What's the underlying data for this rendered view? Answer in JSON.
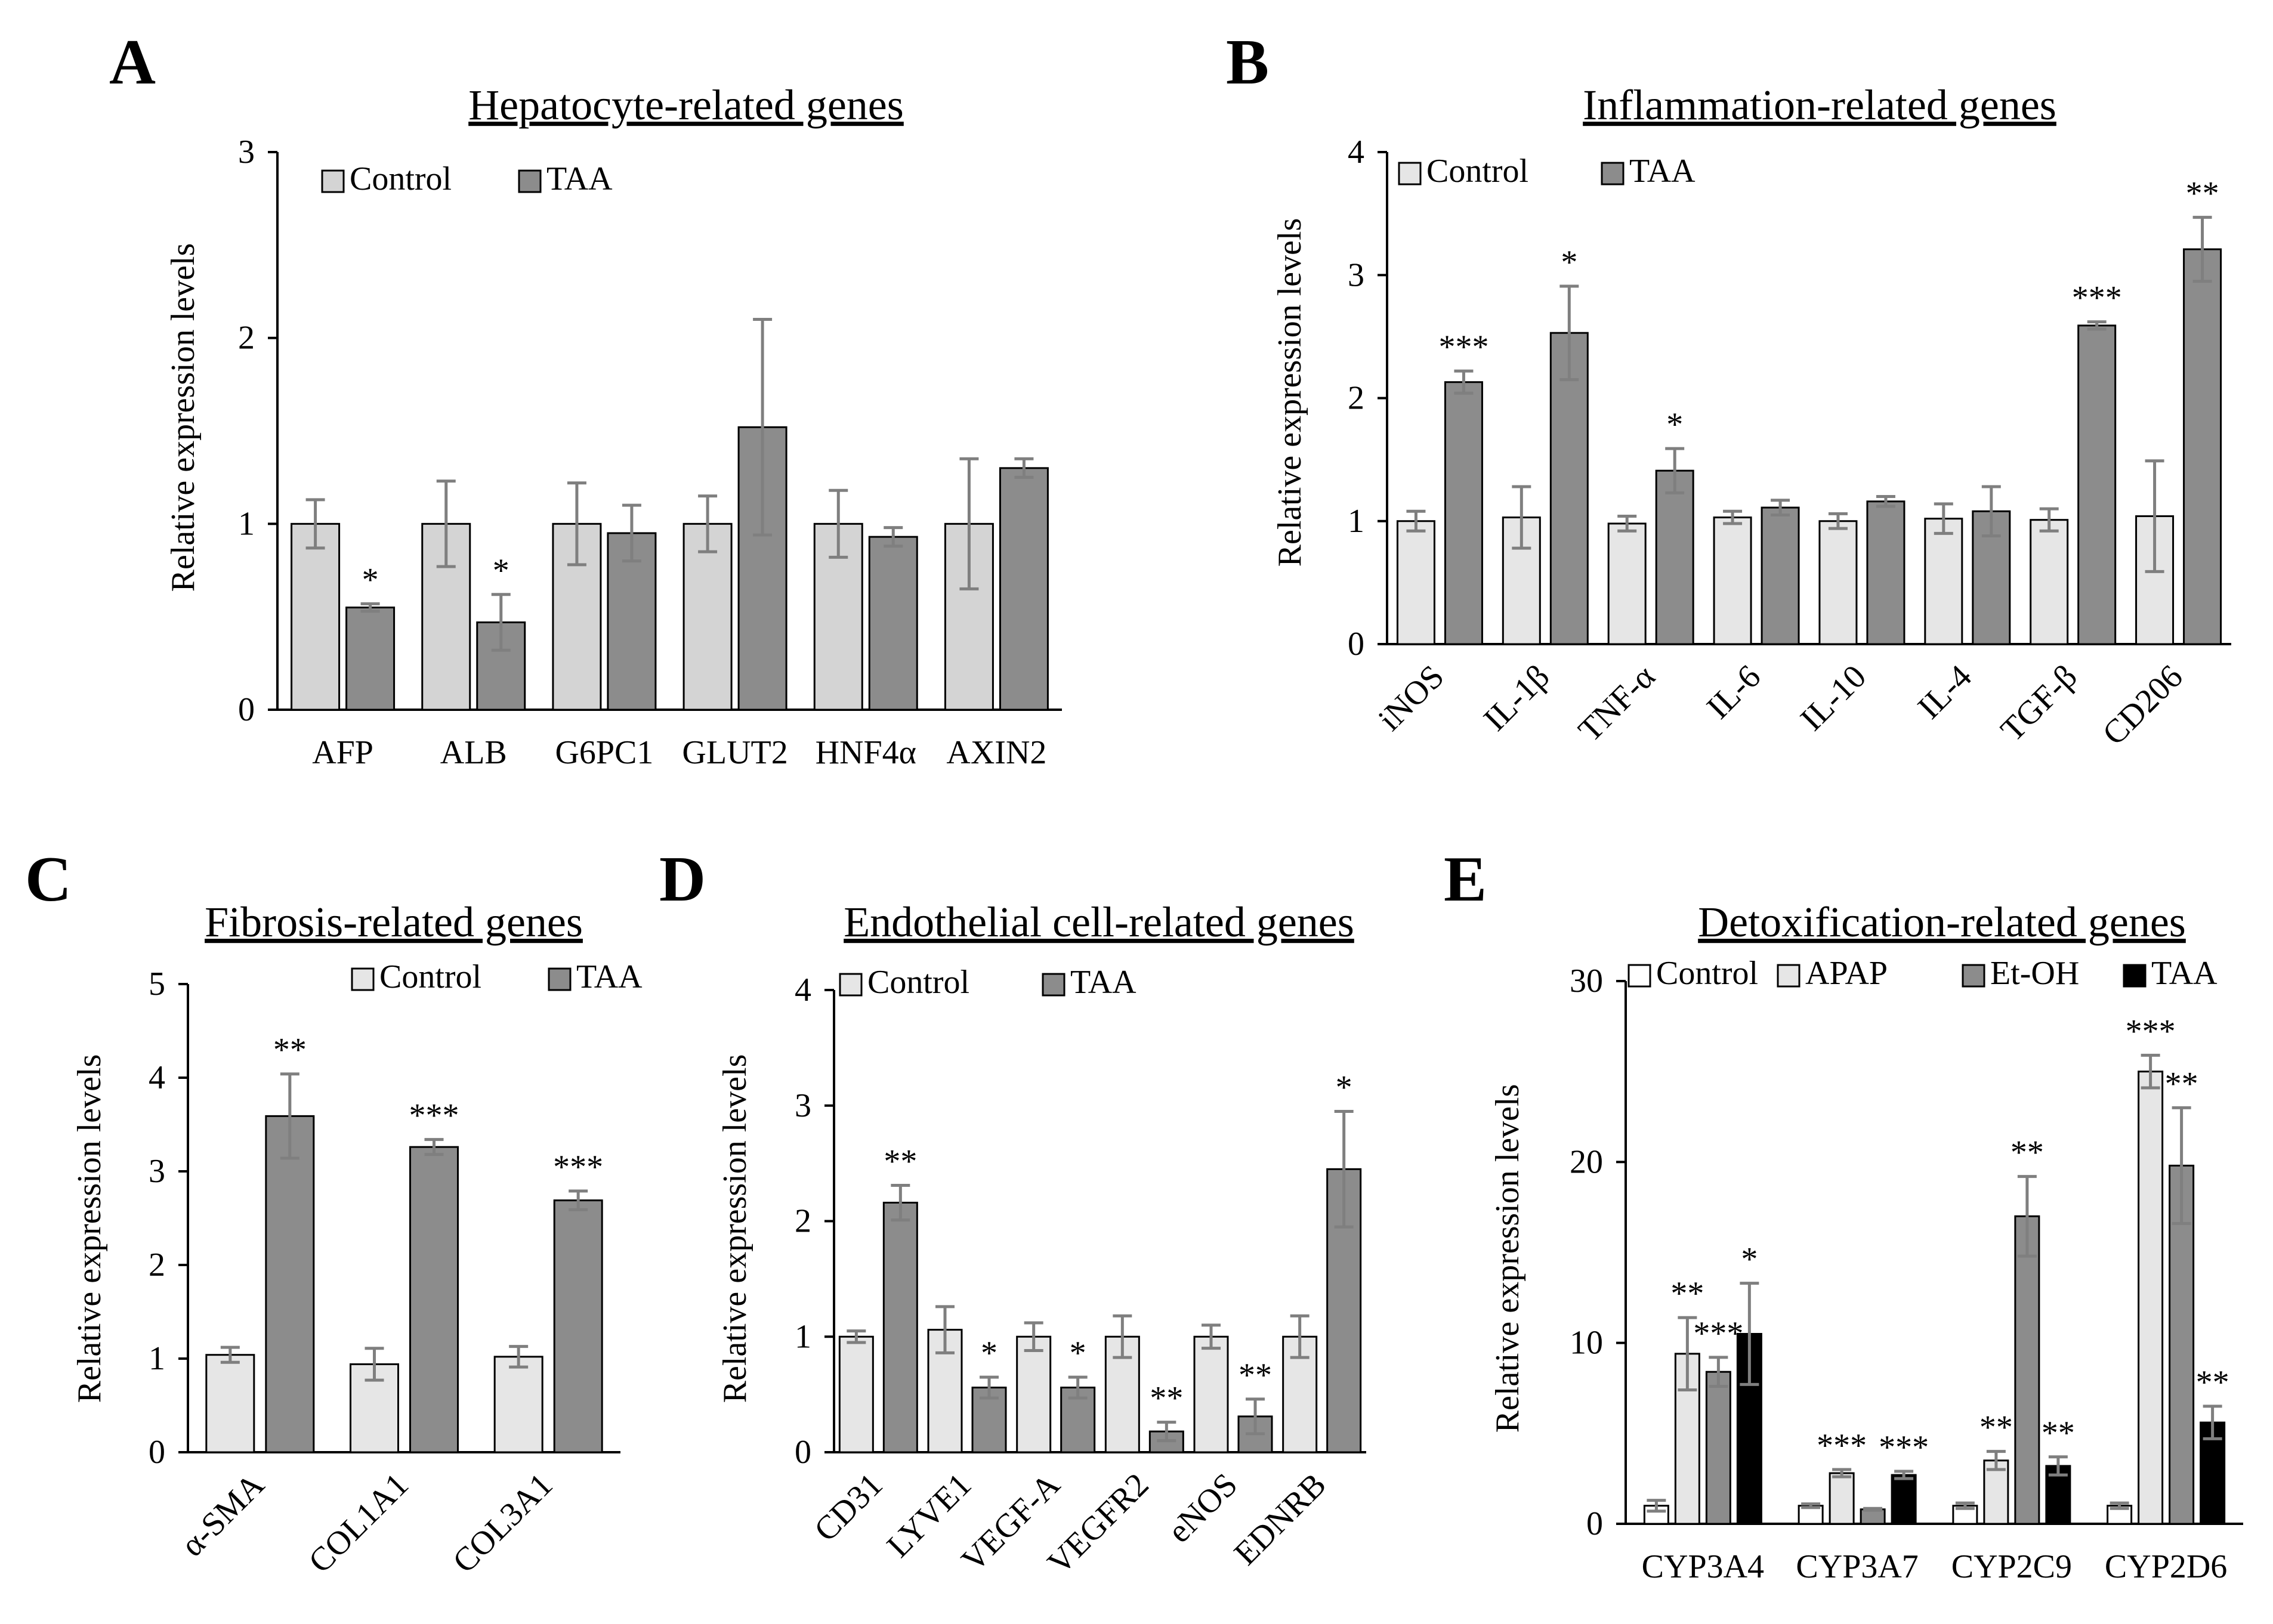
{
  "colors": {
    "control": "#e6e6e6",
    "taa": "#8c8c8c",
    "apap": "#e6e6e6",
    "etoh": "#8c8c8c",
    "taa_black": "#000000",
    "bar_border": "#000000",
    "error_bar": "#7f7f7f"
  },
  "chart_data": [
    {
      "panel": "A",
      "type": "bar",
      "title": "Hepatocyte-related genes",
      "ylabel": "Relative expression levels",
      "ylim": [
        0,
        3
      ],
      "yticks": [
        0,
        1,
        2,
        3
      ],
      "categories": [
        "AFP",
        "ALB",
        "G6PC1",
        "GLUT2",
        "HNF4α",
        "AXIN2"
      ],
      "rotate_labels": false,
      "series": [
        {
          "name": "Control",
          "color": "#d4d4d4",
          "values": [
            1.0,
            1.0,
            1.0,
            1.0,
            1.0,
            1.0
          ],
          "errors": [
            0.13,
            0.23,
            0.22,
            0.15,
            0.18,
            0.35
          ],
          "stars": [
            "",
            "",
            "",
            "",
            "",
            ""
          ]
        },
        {
          "name": "TAA",
          "color": "#8c8c8c",
          "values": [
            0.55,
            0.47,
            0.95,
            1.52,
            0.93,
            1.3
          ],
          "errors": [
            0.02,
            0.15,
            0.15,
            0.58,
            0.05,
            0.05
          ],
          "stars": [
            "*",
            "*",
            "",
            "",
            "",
            ""
          ]
        }
      ],
      "legend": "top-left"
    },
    {
      "panel": "B",
      "type": "bar",
      "title": "Inflammation-related genes",
      "ylabel": "Relative expression levels",
      "ylim": [
        0,
        4
      ],
      "yticks": [
        0,
        1,
        2,
        3,
        4
      ],
      "categories": [
        "iNOS",
        "IL-1β",
        "TNF-α",
        "IL-6",
        "IL-10",
        "IL-4",
        "TGF-β",
        "CD206"
      ],
      "rotate_labels": true,
      "series": [
        {
          "name": "Control",
          "color": "#e6e6e6",
          "values": [
            1.0,
            1.03,
            0.98,
            1.03,
            1.0,
            1.02,
            1.01,
            1.04
          ],
          "errors": [
            0.08,
            0.25,
            0.06,
            0.05,
            0.06,
            0.12,
            0.09,
            0.45
          ],
          "stars": [
            "",
            "",
            "",
            "",
            "",
            "",
            "",
            ""
          ]
        },
        {
          "name": "TAA",
          "color": "#8c8c8c",
          "values": [
            2.13,
            2.53,
            1.41,
            1.11,
            1.16,
            1.08,
            2.59,
            3.21
          ],
          "errors": [
            0.09,
            0.38,
            0.18,
            0.06,
            0.04,
            0.2,
            0.03,
            0.26
          ],
          "stars": [
            "***",
            "*",
            "*",
            "",
            "",
            "",
            "***",
            "**"
          ]
        }
      ],
      "legend": "top-left"
    },
    {
      "panel": "C",
      "type": "bar",
      "title": "Fibrosis-related genes",
      "ylabel": "Relative expression levels",
      "ylim": [
        0,
        5
      ],
      "yticks": [
        0,
        1,
        2,
        3,
        4,
        5
      ],
      "categories": [
        "α-SMA",
        "COL1A1",
        "COL3A1"
      ],
      "rotate_labels": true,
      "series": [
        {
          "name": "Control",
          "color": "#e6e6e6",
          "values": [
            1.04,
            0.94,
            1.02
          ],
          "errors": [
            0.08,
            0.17,
            0.11
          ],
          "stars": [
            "",
            "",
            ""
          ]
        },
        {
          "name": "TAA",
          "color": "#8c8c8c",
          "values": [
            3.59,
            3.26,
            2.69
          ],
          "errors": [
            0.45,
            0.08,
            0.1
          ],
          "stars": [
            "**",
            "***",
            "***"
          ]
        }
      ],
      "legend": "top-right"
    },
    {
      "panel": "D",
      "type": "bar",
      "title": "Endothelial cell-related genes",
      "ylabel": "Relative expression levels",
      "ylim": [
        0,
        4
      ],
      "yticks": [
        0,
        1,
        2,
        3,
        4
      ],
      "categories": [
        "CD31",
        "LYVE1",
        "VEGF-A",
        "VEGFR2",
        "eNOS",
        "EDNRB"
      ],
      "rotate_labels": true,
      "series": [
        {
          "name": "Control",
          "color": "#e6e6e6",
          "values": [
            1.0,
            1.06,
            1.0,
            1.0,
            1.0,
            1.0
          ],
          "errors": [
            0.05,
            0.2,
            0.12,
            0.18,
            0.1,
            0.18
          ],
          "stars": [
            "",
            "",
            "",
            "",
            "",
            ""
          ]
        },
        {
          "name": "TAA",
          "color": "#8c8c8c",
          "values": [
            2.16,
            0.56,
            0.56,
            0.18,
            0.31,
            2.45
          ],
          "errors": [
            0.15,
            0.09,
            0.09,
            0.08,
            0.15,
            0.5
          ],
          "stars": [
            "**",
            "*",
            "*",
            "**",
            "**",
            "*"
          ]
        }
      ],
      "legend": "top-left"
    },
    {
      "panel": "E",
      "type": "bar",
      "title": "Detoxification-related genes",
      "ylabel": "Relative expression levels",
      "ylim": [
        0,
        30
      ],
      "yticks": [
        0,
        10,
        20,
        30
      ],
      "categories": [
        "CYP3A4",
        "CYP3A7",
        "CYP2C9",
        "CYP2D6"
      ],
      "rotate_labels": false,
      "series": [
        {
          "name": "Control",
          "color": "#ffffff",
          "values": [
            1.0,
            1.0,
            1.0,
            1.0
          ],
          "errors": [
            0.3,
            0.1,
            0.15,
            0.15
          ],
          "stars": [
            "",
            "",
            "",
            ""
          ]
        },
        {
          "name": "APAP",
          "color": "#e6e6e6",
          "values": [
            9.4,
            2.8,
            3.5,
            25.0
          ],
          "errors": [
            2.0,
            0.2,
            0.5,
            0.9
          ],
          "stars": [
            "**",
            "***",
            "**",
            "***"
          ]
        },
        {
          "name": "Et-OH",
          "color": "#8c8c8c",
          "values": [
            8.4,
            0.8,
            17.0,
            19.8
          ],
          "errors": [
            0.8,
            0.05,
            2.2,
            3.2
          ],
          "stars": [
            "***",
            "",
            "**",
            "**"
          ]
        },
        {
          "name": "TAA",
          "color": "#000000",
          "values": [
            10.5,
            2.7,
            3.2,
            5.6
          ],
          "errors": [
            2.8,
            0.2,
            0.5,
            0.9
          ],
          "stars": [
            "*",
            "***",
            "**",
            "**"
          ]
        }
      ],
      "legend": "top"
    }
  ]
}
